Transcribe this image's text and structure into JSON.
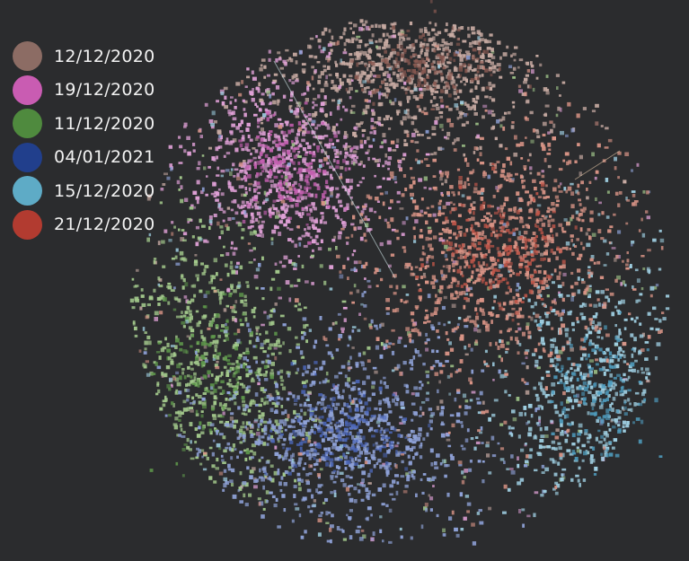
{
  "chart_data": {
    "type": "scatter",
    "title": "",
    "xlabel": "",
    "ylabel": "",
    "grid": false,
    "legend_placement": "top-left",
    "series": [
      {
        "name": "12/12/2020",
        "color": "#8c6c64",
        "point_color": "#c7aaa2",
        "core_color": "#8a5a52"
      },
      {
        "name": "19/12/2020",
        "color": "#c95cb2",
        "point_color": "#dfa0d6",
        "core_color": "#c45fb0"
      },
      {
        "name": "11/12/2020",
        "color": "#4f8a3e",
        "point_color": "#a3c98c",
        "core_color": "#5f9a4c"
      },
      {
        "name": "04/01/2021",
        "color": "#213f8c",
        "point_color": "#8fa2d8",
        "core_color": "#4b66b8"
      },
      {
        "name": "15/12/2020",
        "color": "#5eabc6",
        "point_color": "#9fcfe2",
        "core_color": "#4f9dbf"
      },
      {
        "name": "21/12/2020",
        "color": "#b23b30",
        "point_color": "#d99486",
        "core_color": "#c2574a"
      }
    ]
  }
}
